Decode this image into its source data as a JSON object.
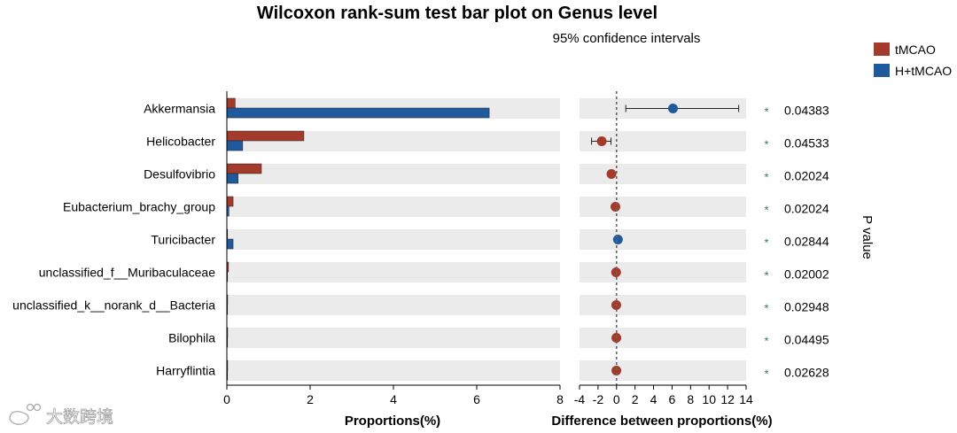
{
  "chart_data": {
    "type": "bar",
    "title": "Wilcoxon rank-sum test bar plot on Genus level",
    "subtitle": "95% confidence intervals",
    "categories": [
      "Akkermansia",
      "Helicobacter",
      "Desulfovibrio",
      "Eubacterium_brachy_group",
      "Turicibacter",
      "unclassified_f__Muribaculaceae",
      "unclassified_k__norank_d__Bacteria",
      "Bilophila",
      "Harryflintia"
    ],
    "series": [
      {
        "name": "tMCAO",
        "color": "#a33a2b",
        "values": [
          0.2,
          1.85,
          0.83,
          0.15,
          0.01,
          0.04,
          0.02,
          0.02,
          0.02
        ]
      },
      {
        "name": "H+tMCAO",
        "color": "#1f5a9c",
        "values": [
          6.3,
          0.38,
          0.27,
          0.05,
          0.15,
          0.01,
          0.01,
          0.01,
          0.01
        ]
      }
    ],
    "xlabel": "Proportions(%)",
    "xlim": [
      0,
      8
    ],
    "xticks": [
      0,
      2,
      4,
      6,
      8
    ],
    "difference": {
      "xlabel": "Difference between proportions(%)",
      "xlim": [
        -4,
        14
      ],
      "xticks": [
        -4,
        -2,
        0,
        2,
        4,
        6,
        8,
        10,
        12,
        14
      ],
      "values": [
        6.1,
        -1.6,
        -0.55,
        -0.12,
        0.15,
        -0.05,
        -0.03,
        -0.02,
        -0.02
      ],
      "ci_low": [
        1.0,
        -2.7,
        -0.55,
        -0.12,
        0.15,
        -0.05,
        -0.03,
        -0.02,
        -0.02
      ],
      "ci_high": [
        13.2,
        -0.6,
        -0.55,
        -0.12,
        0.15,
        -0.05,
        -0.03,
        -0.02,
        -0.02
      ],
      "colors": [
        "#1f5a9c",
        "#a33a2b",
        "#a33a2b",
        "#a33a2b",
        "#1f5a9c",
        "#a33a2b",
        "#a33a2b",
        "#a33a2b",
        "#a33a2b"
      ]
    },
    "p_values": [
      "0.04383",
      "0.04533",
      "0.02024",
      "0.02024",
      "0.02844",
      "0.02002",
      "0.02948",
      "0.04495",
      "0.02628"
    ],
    "significance": [
      "*",
      "*",
      "*",
      "*",
      "*",
      "*",
      "*",
      "*",
      "*"
    ],
    "right_label": "P value",
    "legend_position": "top-right"
  },
  "watermark": {
    "text": "大数跨境"
  }
}
